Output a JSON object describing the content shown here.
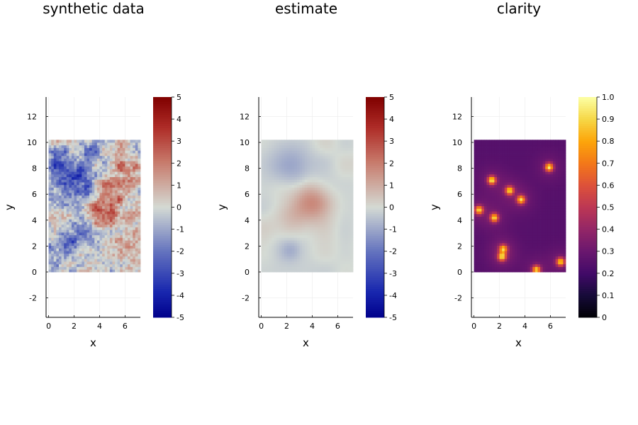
{
  "chart_data": [
    {
      "type": "heatmap",
      "title": "synthetic data",
      "xlabel": "x",
      "ylabel": "y",
      "xlim": [
        -0.2,
        7.2
      ],
      "ylim": [
        -3.5,
        13.5
      ],
      "data_x_range": [
        0,
        7.2
      ],
      "data_y_range": [
        0,
        10.2
      ],
      "x_ticks": [
        "0",
        "2",
        "4",
        "6"
      ],
      "x_tick_values": [
        0,
        2,
        4,
        6
      ],
      "y_ticks": [
        "-2",
        "0",
        "2",
        "4",
        "6",
        "8",
        "10",
        "12"
      ],
      "y_tick_values": [
        -2,
        0,
        2,
        4,
        6,
        8,
        10,
        12
      ],
      "colormap": "balance (blue-grey-red)",
      "color_range": [
        -5,
        5
      ],
      "colorbar_ticks": [
        "5",
        "4",
        "3",
        "2",
        "1",
        "0",
        "-1",
        "-2",
        "-3",
        "-4",
        "-5"
      ],
      "colorbar_tick_values": [
        5,
        4,
        3,
        2,
        1,
        0,
        -1,
        -2,
        -3,
        -4,
        -5
      ],
      "grid": true,
      "features": [
        {
          "x": 2.2,
          "y": 6.5,
          "amp": -3.2,
          "sigma": 1.1
        },
        {
          "x": 0.6,
          "y": 8.2,
          "amp": -2.0,
          "sigma": 0.9
        },
        {
          "x": 1.5,
          "y": 2.5,
          "amp": -2.2,
          "sigma": 1.0
        },
        {
          "x": 3.0,
          "y": 9.2,
          "amp": -1.6,
          "sigma": 0.8
        },
        {
          "x": 4.3,
          "y": 5.3,
          "amp": 3.0,
          "sigma": 1.0
        },
        {
          "x": 5.8,
          "y": 7.8,
          "amp": 1.8,
          "sigma": 1.2
        },
        {
          "x": 6.3,
          "y": 2.2,
          "amp": 1.5,
          "sigma": 0.9
        },
        {
          "x": 0.3,
          "y": 4.6,
          "amp": 1.2,
          "sigma": 0.6
        },
        {
          "x": 4.2,
          "y": 2.3,
          "amp": -1.0,
          "sigma": 0.8
        }
      ]
    },
    {
      "type": "heatmap",
      "title": "estimate",
      "xlabel": "x",
      "ylabel": "y",
      "xlim": [
        -0.2,
        7.2
      ],
      "ylim": [
        -3.5,
        13.5
      ],
      "data_x_range": [
        0,
        7.2
      ],
      "data_y_range": [
        0,
        10.2
      ],
      "x_ticks": [
        "0",
        "2",
        "4",
        "6"
      ],
      "x_tick_values": [
        0,
        2,
        4,
        6
      ],
      "y_ticks": [
        "-2",
        "0",
        "2",
        "4",
        "6",
        "8",
        "10",
        "12"
      ],
      "y_tick_values": [
        -2,
        0,
        2,
        4,
        6,
        8,
        10,
        12
      ],
      "colormap": "balance (blue-grey-red)",
      "color_range": [
        -5,
        5
      ],
      "colorbar_ticks": [
        "5",
        "4",
        "3",
        "2",
        "1",
        "0",
        "-1",
        "-2",
        "-3",
        "-4",
        "-5"
      ],
      "colorbar_tick_values": [
        5,
        4,
        3,
        2,
        1,
        0,
        -1,
        -2,
        -3,
        -4,
        -5
      ],
      "grid": true,
      "features": [
        {
          "x": 3.9,
          "y": 5.4,
          "amp": 1.8,
          "sigma": 1.0
        },
        {
          "x": 2.3,
          "y": 8.2,
          "amp": -1.0,
          "sigma": 1.3
        },
        {
          "x": 2.3,
          "y": 1.7,
          "amp": -0.7,
          "sigma": 0.6
        },
        {
          "x": 2.4,
          "y": 4.3,
          "amp": 0.7,
          "sigma": 1.0
        }
      ]
    },
    {
      "type": "heatmap",
      "title": "clarity",
      "xlabel": "x",
      "ylabel": "y",
      "xlim": [
        -0.2,
        7.2
      ],
      "ylim": [
        -3.5,
        13.5
      ],
      "data_x_range": [
        0,
        7.2
      ],
      "data_y_range": [
        0,
        10.2
      ],
      "x_ticks": [
        "0",
        "2",
        "4",
        "6"
      ],
      "x_tick_values": [
        0,
        2,
        4,
        6
      ],
      "y_ticks": [
        "-2",
        "0",
        "2",
        "4",
        "6",
        "8",
        "10",
        "12"
      ],
      "y_tick_values": [
        -2,
        0,
        2,
        4,
        6,
        8,
        10,
        12
      ],
      "colormap": "inferno",
      "color_range": [
        0,
        1
      ],
      "colorbar_ticks": [
        "1.0",
        "0.9",
        "0.8",
        "0.7",
        "0.6",
        "0.5",
        "0.4",
        "0.3",
        "0.2",
        "0.1",
        "0"
      ],
      "colorbar_tick_values": [
        1.0,
        0.9,
        0.8,
        0.7,
        0.6,
        0.5,
        0.4,
        0.3,
        0.2,
        0.1,
        0
      ],
      "grid": true,
      "background_value": 0.25,
      "hotspots": [
        {
          "x": 1.4,
          "y": 7.1,
          "amp": 0.65
        },
        {
          "x": 2.8,
          "y": 6.3,
          "amp": 0.6
        },
        {
          "x": 3.7,
          "y": 5.6,
          "amp": 0.6
        },
        {
          "x": 5.9,
          "y": 8.1,
          "amp": 0.65
        },
        {
          "x": 0.4,
          "y": 4.8,
          "amp": 0.6
        },
        {
          "x": 1.6,
          "y": 4.2,
          "amp": 0.6
        },
        {
          "x": 2.3,
          "y": 1.8,
          "amp": 0.55
        },
        {
          "x": 2.2,
          "y": 1.2,
          "amp": 0.6
        },
        {
          "x": 4.9,
          "y": 0.2,
          "amp": 0.6
        },
        {
          "x": 6.8,
          "y": 0.8,
          "amp": 0.6
        }
      ]
    }
  ]
}
